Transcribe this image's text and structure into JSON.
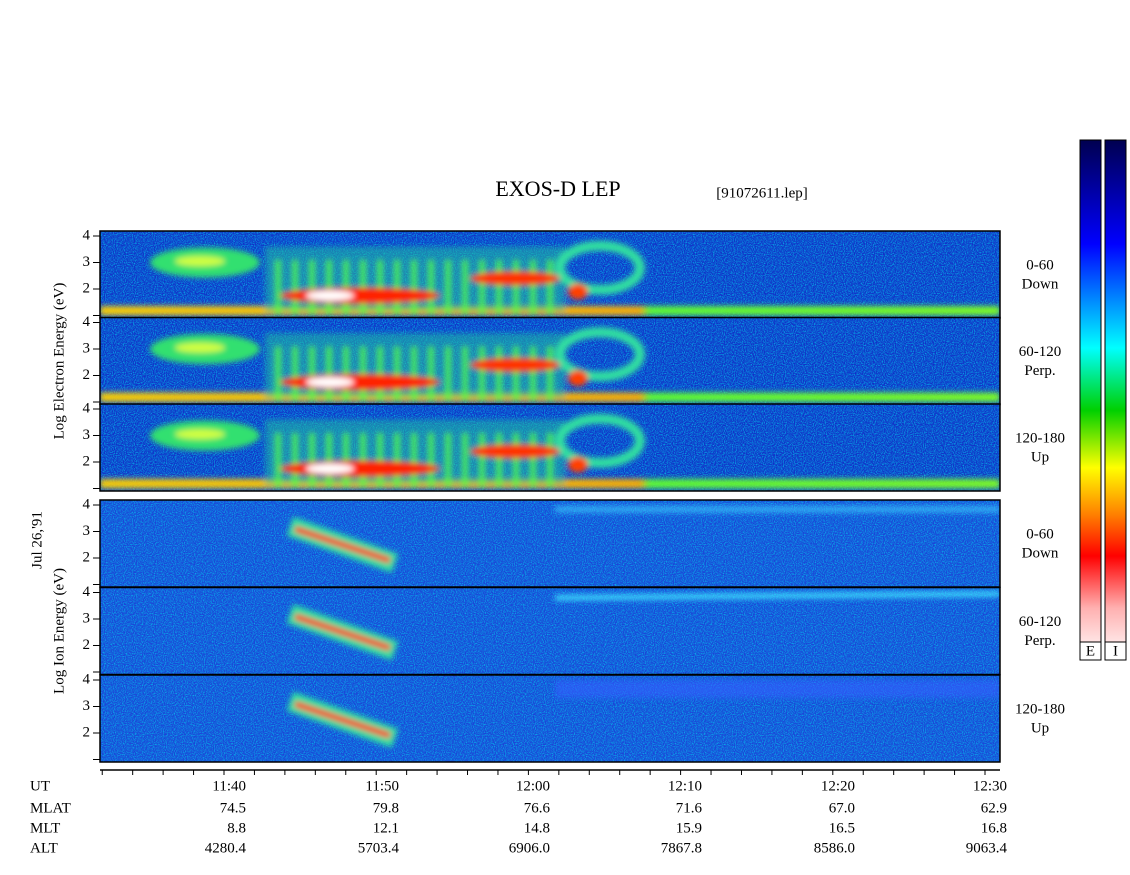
{
  "header": {
    "title": "EXOS-D LEP",
    "file": "[91072611.lep]"
  },
  "date_label": "Jul 26,'91",
  "groups": [
    {
      "axis_label": "Log Electron Energy (eV)",
      "panels": [
        {
          "ticks": [
            4,
            3,
            2
          ],
          "angle": "0-60",
          "direction": "Down"
        },
        {
          "ticks": [
            4,
            3,
            2
          ],
          "angle": "60-120",
          "direction": "Perp."
        },
        {
          "ticks": [
            4,
            3,
            2
          ],
          "angle": "120-180",
          "direction": "Up"
        }
      ]
    },
    {
      "axis_label": "Log Ion Energy (eV)",
      "panels": [
        {
          "ticks": [
            4,
            3,
            2
          ],
          "angle": "0-60",
          "direction": "Down"
        },
        {
          "ticks": [
            4,
            3,
            2
          ],
          "angle": "60-120",
          "direction": "Perp."
        },
        {
          "ticks": [
            4,
            3,
            2
          ],
          "angle": "120-180",
          "direction": "Up"
        }
      ]
    }
  ],
  "time_axis": {
    "rows": [
      {
        "label": "UT",
        "values": [
          "11:40",
          "11:50",
          "12:00",
          "12:10",
          "12:20",
          "12:30"
        ]
      },
      {
        "label": "MLAT",
        "values": [
          "74.5",
          "79.8",
          "76.6",
          "71.6",
          "67.0",
          "62.9"
        ]
      },
      {
        "label": "MLT",
        "values": [
          "8.8",
          "12.1",
          "14.8",
          "15.9",
          "16.5",
          "16.8"
        ]
      },
      {
        "label": "ALT",
        "values": [
          "4280.4",
          "5703.4",
          "6906.0",
          "7867.8",
          "8586.0",
          "9063.4"
        ]
      }
    ]
  },
  "color_bar": {
    "labels": [
      "E",
      "I"
    ]
  }
}
